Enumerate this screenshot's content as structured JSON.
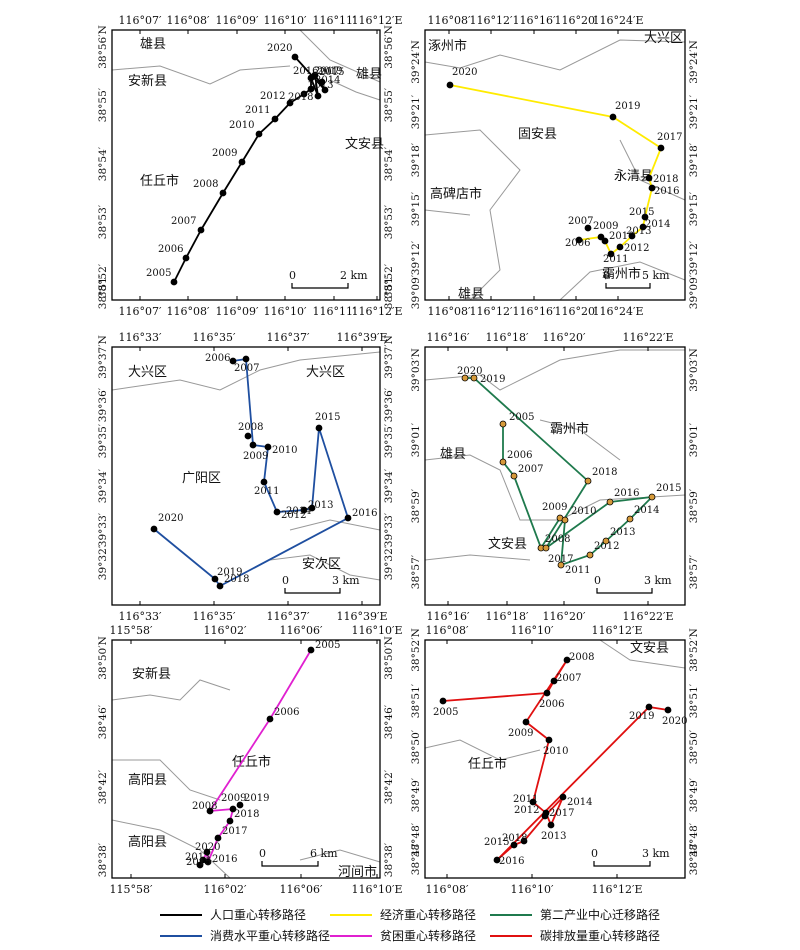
{
  "legend": [
    {
      "label": "人口重心转移路径",
      "color": "#000000"
    },
    {
      "label": "经济重心转移路径",
      "color": "#ffeb00"
    },
    {
      "label": "第二产业中心迁移路径",
      "color": "#1f7a4d"
    },
    {
      "label": "消费水平重心转移路径",
      "color": "#1f4fa0"
    },
    {
      "label": "贫困重心转移路径",
      "color": "#e020d0"
    },
    {
      "label": "碳排放量重心转移路径",
      "color": "#e01010"
    }
  ],
  "panels": [
    {
      "id": "population",
      "color": "#000000",
      "pointColor": "#000000",
      "xTicks": [
        "116°07′",
        "116°08′",
        "116°09′",
        "116°10′",
        "116°11′",
        "116°12′E"
      ],
      "yTicks": [
        "38°56′N",
        "38°55′",
        "38°54′",
        "38°53′",
        "38°52′",
        "38°51′"
      ],
      "places": [
        "雄县",
        "安新县",
        "雄县",
        "文安县",
        "任丘市"
      ],
      "scalebar": {
        "left": "0",
        "right": "2 km"
      },
      "years": [
        "2005",
        "2006",
        "2007",
        "2008",
        "2009",
        "2010",
        "2011",
        "2012",
        "2013",
        "2014",
        "2015",
        "2016",
        "2017",
        "2018",
        "2019",
        "2020"
      ]
    },
    {
      "id": "economy",
      "color": "#ffeb00",
      "pointColor": "#000000",
      "xTicks": [
        "116°08′",
        "116°12′",
        "116°16′",
        "116°20′",
        "116°24′E"
      ],
      "yTicks": [
        "39°24′N",
        "39°21′",
        "39°18′",
        "39°15′",
        "39°12′",
        "39°09′"
      ],
      "places": [
        "涿州市",
        "大兴区",
        "固安县",
        "永清县",
        "高碑店市",
        "霸州市",
        "雄县"
      ],
      "scalebar": {
        "left": "0",
        "right": "5 km"
      },
      "years": [
        "2006",
        "2007",
        "2009",
        "2010",
        "2011",
        "2012",
        "2013",
        "2014",
        "2015",
        "2016",
        "2017",
        "2018",
        "2019",
        "2020"
      ]
    },
    {
      "id": "consumption",
      "color": "#1f4fa0",
      "pointColor": "#000000",
      "xTicks": [
        "116°33′",
        "116°35′",
        "116°37′",
        "116°39′E"
      ],
      "yTicks": [
        "39°37′N",
        "39°36′",
        "39°35′",
        "39°34′",
        "39°33′",
        "39°32′"
      ],
      "places": [
        "大兴区",
        "大兴区",
        "广阳区",
        "安次区"
      ],
      "scalebar": {
        "left": "0",
        "right": "3 km"
      },
      "years": [
        "2006",
        "2007",
        "2008",
        "2009",
        "2010",
        "2011",
        "2012",
        "2013",
        "2014",
        "2015",
        "2016",
        "2018",
        "2019",
        "2020"
      ]
    },
    {
      "id": "industry",
      "color": "#1f7a4d",
      "pointColor": "#d69a3a",
      "xTicks": [
        "116°16′",
        "116°18′",
        "116°20′",
        "116°22′E"
      ],
      "yTicks": [
        "39°03′N",
        "39°01′",
        "38°59′",
        "38°57′"
      ],
      "places": [
        "霸州市",
        "雄县",
        "文安县"
      ],
      "scalebar": {
        "left": "0",
        "right": "3 km"
      },
      "years": [
        "2005",
        "2006",
        "2007",
        "2008",
        "2009",
        "2010",
        "2011",
        "2012",
        "2013",
        "2014",
        "2015",
        "2016",
        "2017",
        "2018",
        "2019",
        "2020"
      ]
    },
    {
      "id": "poverty",
      "color": "#e020d0",
      "pointColor": "#000000",
      "xTicks": [
        "115°58′",
        "116°02′",
        "116°06′",
        "116°10′E"
      ],
      "yTicks": [
        "38°50′N",
        "38°46′",
        "38°42′",
        "38°38′"
      ],
      "places": [
        "安新县",
        "任丘市",
        "高阳县",
        "高阳县",
        "河间市"
      ],
      "scalebar": {
        "left": "0",
        "right": "6 km"
      },
      "years": [
        "2005",
        "2006",
        "2008",
        "2009",
        "2013",
        "2016",
        "2017",
        "2018",
        "2019",
        "2020",
        "2015"
      ]
    },
    {
      "id": "carbon",
      "color": "#e01010",
      "pointColor": "#000000",
      "xTicks": [
        "116°08′",
        "116°10′",
        "116°12′E"
      ],
      "yTicks": [
        "38°52′N",
        "38°51′",
        "38°50′",
        "38°49′",
        "38°48′",
        "38°47′"
      ],
      "places": [
        "文安县",
        "任丘市"
      ],
      "scalebar": {
        "left": "0",
        "right": "3 km"
      },
      "years": [
        "2005",
        "2006",
        "2007",
        "2008",
        "2009",
        "2010",
        "2011",
        "2012",
        "2013",
        "2014",
        "2015",
        "2016",
        "2017",
        "2018",
        "2019",
        "2020"
      ]
    }
  ]
}
